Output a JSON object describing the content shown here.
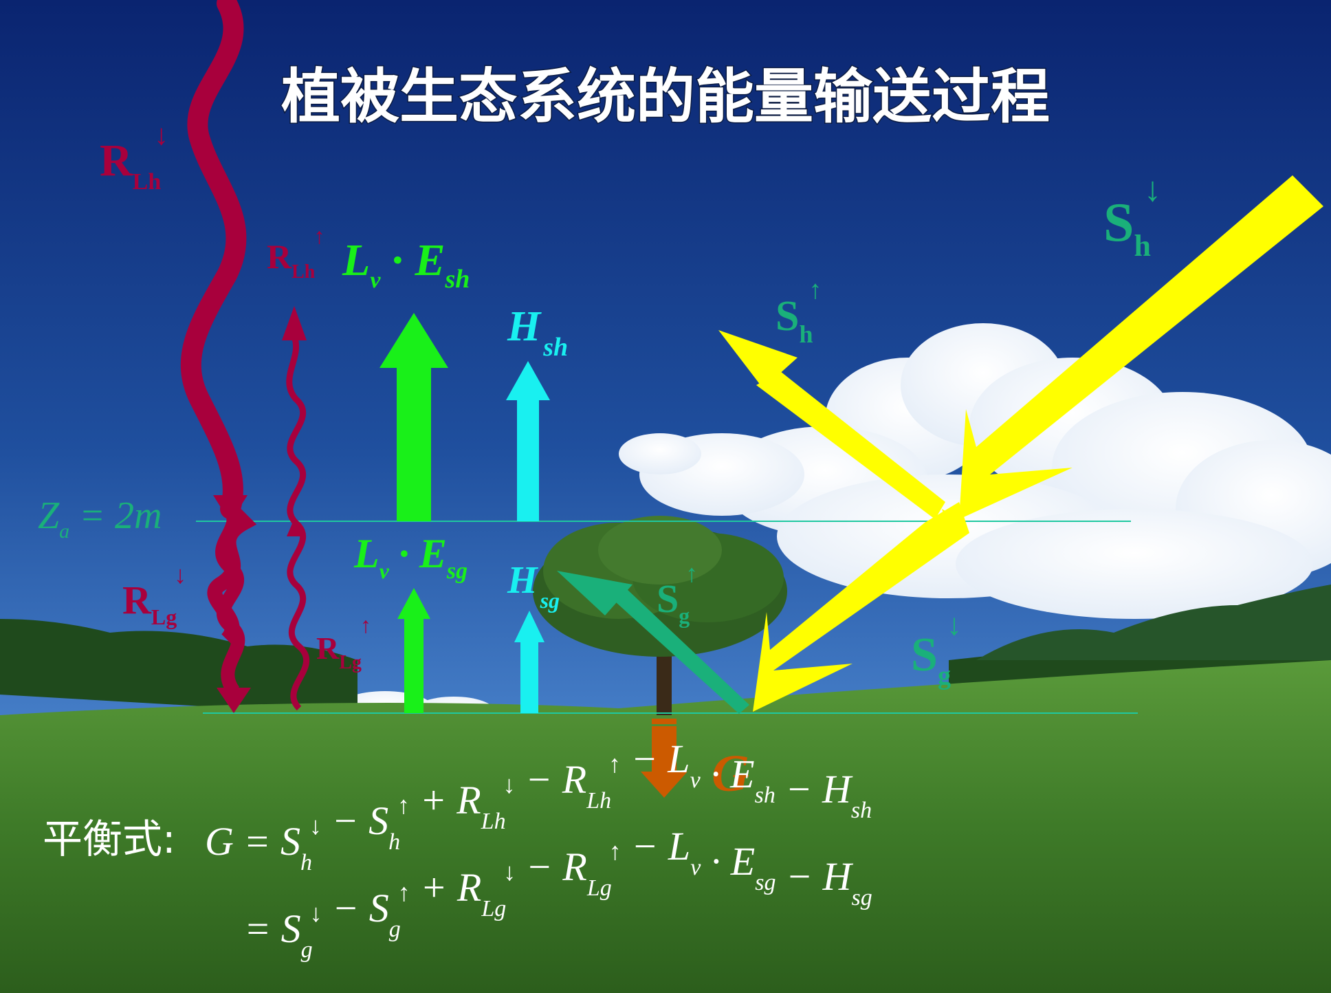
{
  "title": "植被生态系统的能量输送过程",
  "colors": {
    "sky_top": "#0d2a7a",
    "sky_bottom": "#4a86d0",
    "grass": "#3f7a2a",
    "longwave": "#a8003c",
    "shortwave": "#ffff00",
    "latent": "#19f019",
    "sensible": "#19f0f0",
    "ground_heat": "#cc5a00",
    "label_teal": "#1ab07a",
    "level_line": "#1fc8a0"
  },
  "labels": {
    "R_Lh_down": {
      "base": "R",
      "sub": "Lh",
      "dir": "↓"
    },
    "R_Lh_up": {
      "base": "R",
      "sub": "Lh",
      "dir": "↑"
    },
    "R_Lg_down": {
      "base": "R",
      "sub": "Lg",
      "dir": "↓"
    },
    "R_Lg_up": {
      "base": "R",
      "sub": "Lg",
      "dir": "↑"
    },
    "Lv_Esh": {
      "a": "L",
      "a_sub": "v",
      "dot": "·",
      "b": "E",
      "b_sub": "sh"
    },
    "Lv_Esg": {
      "a": "L",
      "a_sub": "v",
      "dot": "·",
      "b": "E",
      "b_sub": "sg"
    },
    "H_sh": {
      "base": "H",
      "sub": "sh"
    },
    "H_sg": {
      "base": "H",
      "sub": "sg"
    },
    "S_h_down": {
      "base": "S",
      "sub": "h",
      "dir": "↓"
    },
    "S_h_up": {
      "base": "S",
      "sub": "h",
      "dir": "↑"
    },
    "S_g_down": {
      "base": "S",
      "sub": "g",
      "dir": "↓"
    },
    "S_g_up": {
      "base": "S",
      "sub": "g",
      "dir": "↑"
    },
    "G": "G",
    "Za": {
      "base": "Z",
      "sub": "a",
      "rest": "= 2m"
    }
  },
  "equation": {
    "prefix": "平衡式:",
    "line1": [
      {
        "t": "G = S",
        "sub": "h",
        "sup": "↓"
      },
      {
        "t": " − S",
        "sub": "h",
        "sup": "↑"
      },
      {
        "t": " + R",
        "sub": "Lh",
        "sup": "↓"
      },
      {
        "t": " − R",
        "sub": "Lh",
        "sup": "↑"
      },
      {
        "t": " − L",
        "sub": "v",
        "sup": ""
      },
      {
        "t": " · E",
        "sub": "sh",
        "sup": ""
      },
      {
        "t": " − H",
        "sub": "sh",
        "sup": ""
      }
    ],
    "line2": [
      {
        "t": "= S",
        "sub": "g",
        "sup": "↓"
      },
      {
        "t": " − S",
        "sub": "g",
        "sup": "↑"
      },
      {
        "t": " + R",
        "sub": "Lg",
        "sup": "↓"
      },
      {
        "t": " − R",
        "sub": "Lg",
        "sup": "↑"
      },
      {
        "t": " − L",
        "sub": "v",
        "sup": ""
      },
      {
        "t": " · E",
        "sub": "sg",
        "sup": ""
      },
      {
        "t": " − H",
        "sub": "sg",
        "sup": ""
      }
    ]
  }
}
